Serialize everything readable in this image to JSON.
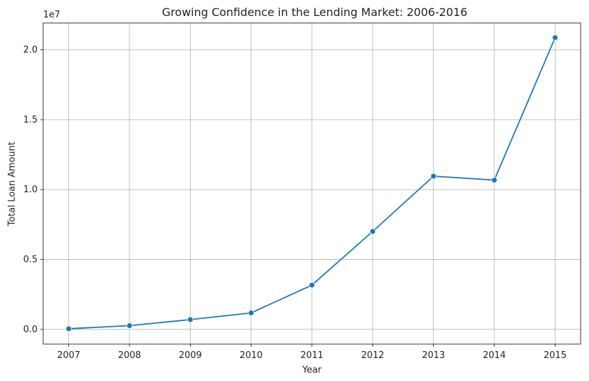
{
  "chart_data": {
    "type": "line",
    "title": "Growing Confidence in the Lending Market: 2006-2016",
    "xlabel": "Year",
    "ylabel": "Total Loan Amount",
    "y_offset_label": "1e7",
    "x": [
      2007,
      2008,
      2009,
      2010,
      2011,
      2012,
      2013,
      2014,
      2015
    ],
    "values": [
      50000,
      270000,
      700000,
      1180000,
      3170000,
      7010000,
      10960000,
      10680000,
      20870000
    ],
    "ylim": [
      -1050000,
      21920000
    ],
    "yticks": [
      0,
      5000000,
      10000000,
      15000000,
      20000000
    ],
    "ytick_labels": [
      "0.0",
      "0.5",
      "1.0",
      "1.5",
      "2.0"
    ],
    "xtick_labels": [
      "2007",
      "2008",
      "2009",
      "2010",
      "2011",
      "2012",
      "2013",
      "2014",
      "2015"
    ],
    "grid": true,
    "color": "#1f77b4"
  }
}
